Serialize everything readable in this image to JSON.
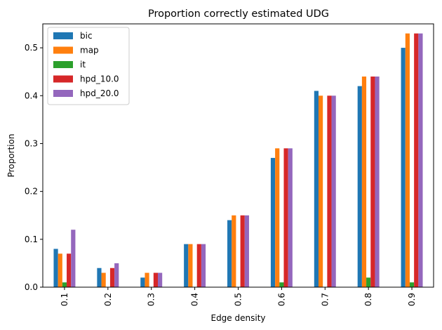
{
  "chart_data": {
    "type": "bar",
    "title": "Proportion correctly estimated UDG",
    "xlabel": "Edge density",
    "ylabel": "Proportion",
    "categories": [
      "0.1",
      "0.2",
      "0.3",
      "0.4",
      "0.5",
      "0.6",
      "0.7",
      "0.8",
      "0.9"
    ],
    "ylim": [
      0,
      0.55
    ],
    "yticks": [
      "0.0",
      "0.1",
      "0.2",
      "0.3",
      "0.4",
      "0.5"
    ],
    "grid": false,
    "legend_position": "top-left",
    "series": [
      {
        "name": "bic",
        "color": "#1f77b4",
        "values": [
          0.08,
          0.04,
          0.02,
          0.09,
          0.14,
          0.27,
          0.41,
          0.42,
          0.5
        ]
      },
      {
        "name": "map",
        "color": "#ff7f0e",
        "values": [
          0.07,
          0.03,
          0.03,
          0.09,
          0.15,
          0.29,
          0.4,
          0.44,
          0.53
        ]
      },
      {
        "name": "it",
        "color": "#2ca02c",
        "values": [
          0.01,
          0.0,
          0.0,
          0.0,
          0.0,
          0.01,
          0.0,
          0.02,
          0.01
        ]
      },
      {
        "name": "hpd_10.0",
        "color": "#d62728",
        "values": [
          0.07,
          0.04,
          0.03,
          0.09,
          0.15,
          0.29,
          0.4,
          0.44,
          0.53
        ]
      },
      {
        "name": "hpd_20.0",
        "color": "#9467bd",
        "values": [
          0.12,
          0.05,
          0.03,
          0.09,
          0.15,
          0.29,
          0.4,
          0.44,
          0.53
        ]
      }
    ]
  }
}
